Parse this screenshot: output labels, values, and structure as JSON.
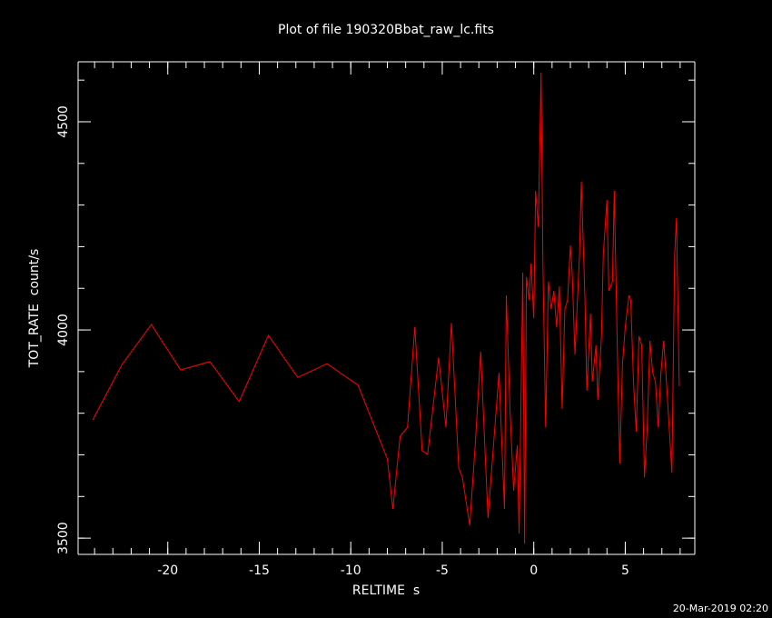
{
  "chart_data": {
    "type": "line",
    "title": "Plot of file 190320Bbat_raw_lc.fits",
    "x_label": "RELTIME  s",
    "y_label": "TOT_RATE  count/s",
    "timestamp": "20-Mar-2019 02:20",
    "color": "#ff0000",
    "xlim": [
      -24.9,
      8.8
    ],
    "ylim": [
      3461,
      4644
    ],
    "xticks": [
      -20,
      -15,
      -10,
      -5,
      0,
      5
    ],
    "yticks": [
      3500,
      4000,
      4500
    ],
    "x": [
      -24.1,
      -22.5,
      -20.9,
      -19.3,
      -17.7,
      -16.1,
      -14.5,
      -12.9,
      -11.3,
      -9.6,
      -8.0,
      -7.7,
      -7.3,
      -6.9,
      -6.5,
      -6.1,
      -5.8,
      -5.2,
      -4.8,
      -4.5,
      -4.1,
      -3.9,
      -3.5,
      -3.2,
      -2.9,
      -2.5,
      -2.2,
      -1.9,
      -1.6,
      -1.5,
      -1.3,
      -1.1,
      -0.9,
      -0.8,
      -0.6,
      -0.5,
      -0.4,
      -0.25,
      -0.15,
      0,
      0.1,
      0.25,
      0.4,
      0.5,
      0.65,
      0.8,
      0.95,
      1.1,
      1.25,
      1.4,
      1.55,
      1.7,
      1.85,
      2.0,
      2.1,
      2.25,
      2.5,
      2.6,
      2.8,
      2.9,
      3.1,
      3.2,
      3.4,
      3.5,
      3.7,
      3.8,
      4.0,
      4.1,
      4.3,
      4.4,
      4.6,
      4.7,
      4.85,
      5.0,
      5.2,
      5.3,
      5.45,
      5.6,
      5.75,
      5.9,
      6.05,
      6.2,
      6.35,
      6.5,
      6.65,
      6.8,
      6.95,
      7.1,
      7.25,
      7.4,
      7.55,
      7.7,
      7.8,
      7.95
    ],
    "values": [
      3784,
      3917,
      4013,
      3904,
      3924,
      3828,
      3987,
      3886,
      3919,
      3867,
      3690,
      3570,
      3745,
      3766,
      4007,
      3710,
      3701,
      3934,
      3766,
      4017,
      3668,
      3646,
      3531,
      3723,
      3948,
      3548,
      3723,
      3897,
      3570,
      4083,
      3810,
      3614,
      3723,
      3511,
      4138,
      3487,
      4127,
      4072,
      4159,
      4028,
      4334,
      4247,
      4618,
      4159,
      3766,
      4116,
      4050,
      4094,
      4007,
      4105,
      3810,
      4050,
      4072,
      4203,
      4138,
      3941,
      4181,
      4356,
      4072,
      3854,
      4039,
      3876,
      3963,
      3832,
      3985,
      4181,
      4312,
      4094,
      4116,
      4334,
      3876,
      3679,
      3919,
      4007,
      4083,
      4072,
      3876,
      3756,
      3985,
      3963,
      3646,
      3766,
      3974,
      3897,
      3876,
      3766,
      3897,
      3974,
      3876,
      3766,
      3657,
      4181,
      4269,
      3865
    ]
  }
}
